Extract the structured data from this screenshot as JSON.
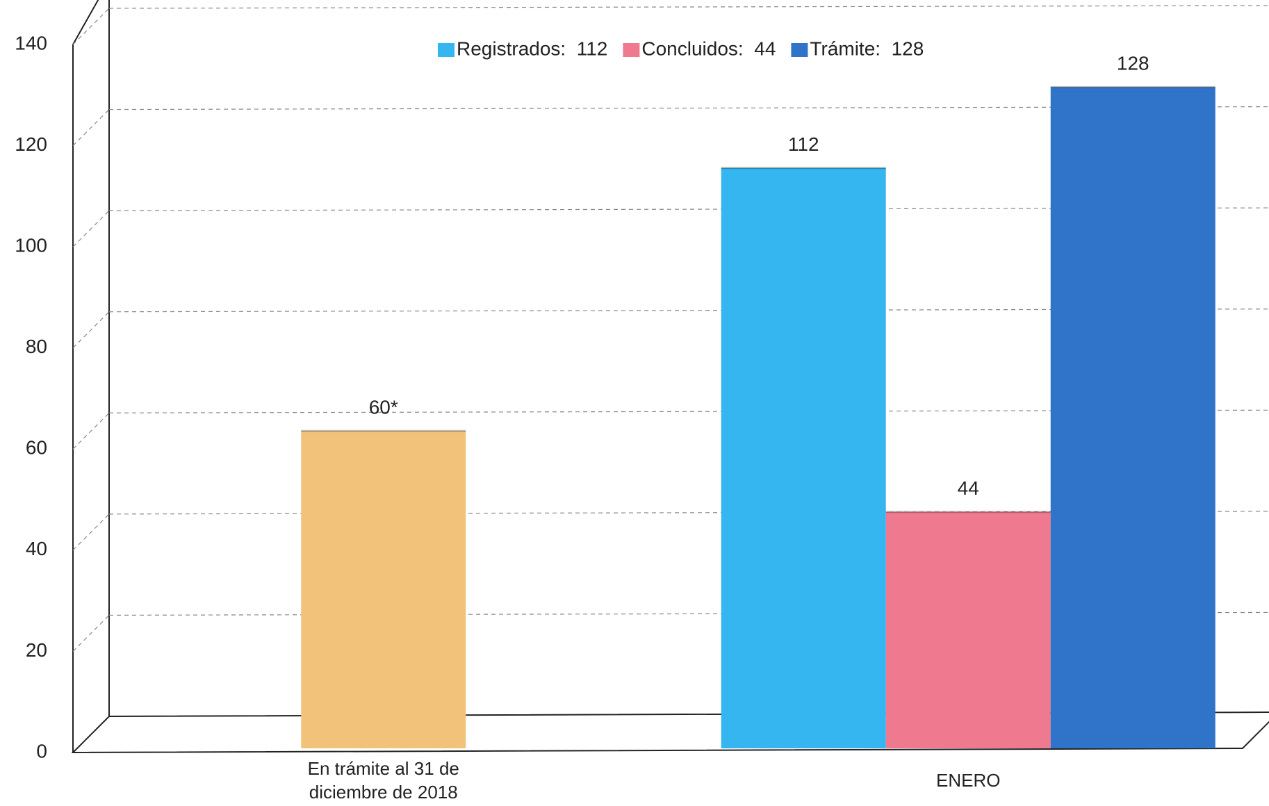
{
  "chart_data": {
    "type": "bar",
    "categories": [
      "En trámite al 31 de diciembre de 2018",
      "ENERO"
    ],
    "series": [
      {
        "color": "#f2c27b",
        "values": [
          60,
          null
        ],
        "value_labels": [
          "60*",
          null
        ]
      },
      {
        "name": "Registrados:  112",
        "color": "#35b6f0",
        "values": [
          null,
          112
        ]
      },
      {
        "name": "Concluidos:  44",
        "color": "#ef7a8f",
        "values": [
          null,
          44
        ]
      },
      {
        "name": "Trámite:  128",
        "color": "#2f74c8",
        "values": [
          null,
          128
        ]
      }
    ],
    "ylim": [
      0,
      140
    ],
    "yticks": [
      0,
      20,
      40,
      60,
      80,
      100,
      120,
      140
    ],
    "grid": true,
    "legend": "top"
  }
}
